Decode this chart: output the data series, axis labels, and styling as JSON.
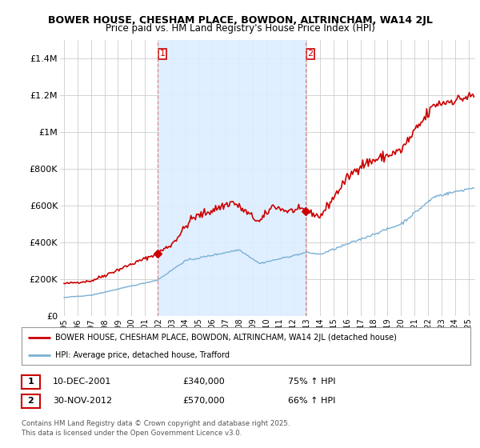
{
  "title1": "BOWER HOUSE, CHESHAM PLACE, BOWDON, ALTRINCHAM, WA14 2JL",
  "title2": "Price paid vs. HM Land Registry's House Price Index (HPI)",
  "legend_line1": "BOWER HOUSE, CHESHAM PLACE, BOWDON, ALTRINCHAM, WA14 2JL (detached house)",
  "legend_line2": "HPI: Average price, detached house, Trafford",
  "red_color": "#cc0000",
  "blue_color": "#7ab0d4",
  "vline_color": "#dd8888",
  "shade_color": "#ddeeff",
  "sale1_date": "10-DEC-2001",
  "sale1_price": 340000,
  "sale1_pct": "75% ↑ HPI",
  "sale2_date": "30-NOV-2012",
  "sale2_price": 570000,
  "sale2_pct": "66% ↑ HPI",
  "copyright": "Contains HM Land Registry data © Crown copyright and database right 2025.\nThis data is licensed under the Open Government Licence v3.0.",
  "ylim": [
    0,
    1500000
  ],
  "xlim_start": 1994.7,
  "xlim_end": 2025.5,
  "vline1_x": 2001.94,
  "vline2_x": 2012.92,
  "background_color": "#ffffff",
  "grid_color": "#cccccc"
}
